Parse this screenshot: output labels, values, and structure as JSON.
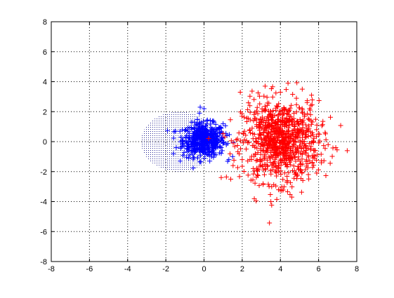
{
  "chart_data": {
    "type": "scatter",
    "title": "",
    "xlabel": "",
    "ylabel": "",
    "xlim": [
      -8,
      8
    ],
    "ylim": [
      -8,
      8
    ],
    "xticks": [
      -8,
      -6,
      -4,
      -2,
      0,
      2,
      4,
      6,
      8
    ],
    "yticks": [
      -8,
      -6,
      -4,
      -2,
      0,
      2,
      4,
      6,
      8
    ],
    "grid": true,
    "grid_style": "dotted",
    "legend": "none",
    "marker": "+",
    "region": {
      "shape": "disk",
      "center": [
        -1.3,
        0.0
      ],
      "radius": 2.0,
      "color": "#000080",
      "fill": "dot-grid"
    },
    "series": [
      {
        "color": "#0000ff",
        "center": [
          0.0,
          0.1
        ],
        "spread": [
          0.55,
          0.55
        ],
        "count": 500,
        "sample_points": [
          [
            0.0,
            0.1
          ],
          [
            -1.5,
            0.7
          ],
          [
            -1.6,
            -0.8
          ],
          [
            -0.2,
            2.3
          ],
          [
            0.0,
            2.2
          ],
          [
            1.0,
            1.2
          ],
          [
            1.3,
            -1.2
          ],
          [
            -0.8,
            -1.1
          ],
          [
            0.6,
            0.8
          ],
          [
            0.9,
            -0.4
          ],
          [
            -1.2,
            0.3
          ],
          [
            0.3,
            -1.3
          ],
          [
            1.2,
            0.4
          ],
          [
            -0.5,
            1.3
          ],
          [
            -0.9,
            -0.5
          ]
        ]
      },
      {
        "color": "#ff0000",
        "center": [
          4.0,
          0.0
        ],
        "spread": [
          1.0,
          1.35
        ],
        "count": 900,
        "sample_points": [
          [
            7.5,
            -0.6
          ],
          [
            4.4,
            3.9
          ],
          [
            3.5,
            -4.0
          ],
          [
            1.4,
            -2.5
          ],
          [
            0.9,
            -2.4
          ],
          [
            3.2,
            3.7
          ],
          [
            1.9,
            3.3
          ],
          [
            6.5,
            -0.2
          ],
          [
            5.9,
            -2.1
          ],
          [
            2.4,
            2.4
          ],
          [
            4.6,
            -3.7
          ],
          [
            6.9,
            -0.4
          ],
          [
            4.0,
            3.3
          ],
          [
            2.0,
            -1.2
          ],
          [
            5.4,
            2.6
          ]
        ]
      }
    ]
  }
}
